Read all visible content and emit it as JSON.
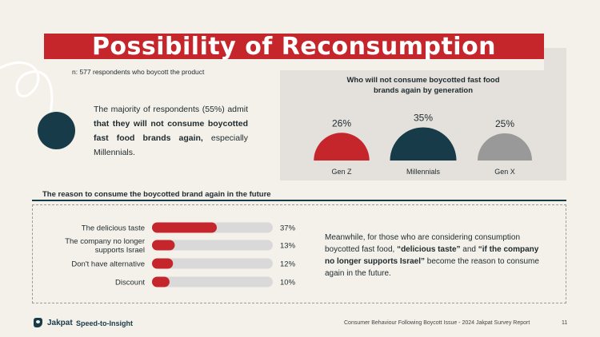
{
  "title": "Possibility of Reconsumption",
  "sample_note": "n: 577 respondents who boycott the product",
  "summary": {
    "part1": "The majority of respondents (55%) admit ",
    "bold": "that they will not consume boycotted fast food brands again,",
    "part2": " especially Millennials."
  },
  "generation_panel": {
    "title_line1": "Who will not consume boycotted fast food",
    "title_line2": "brands again by generation"
  },
  "reason_heading": "The reason to consume the boycotted brand again in the future",
  "meanwhile": {
    "p1": "Meanwhile, for those who are considering consumption boycotted fast food, ",
    "b1": "“delicious taste”",
    "p2": " and ",
    "b2": "“if the company no longer supports Israel”",
    "p3": " become the reason to consume again in the future."
  },
  "footer": {
    "brand": "Jakpat",
    "tagline": "Speed-to-Insight",
    "report": "Consumer Behaviour Following Boycott Issue - 2024 Jakpat Survey Report",
    "page": "11"
  },
  "colors": {
    "red": "#c4262b",
    "navy": "#173b48",
    "gray": "#999999",
    "track": "#d9d9d9"
  },
  "chart_data": [
    {
      "type": "semicircle",
      "title": "Who will not consume boycotted fast food brands again by generation",
      "categories": [
        "Gen Z",
        "Millennials",
        "Gen X"
      ],
      "values": [
        26,
        35,
        25
      ],
      "labels": [
        "26%",
        "35%",
        "25%"
      ],
      "unit": "%"
    },
    {
      "type": "bar",
      "orientation": "horizontal",
      "title": "The reason to consume the boycotted brand again in the future",
      "categories": [
        [
          "The delicious taste"
        ],
        [
          "The company no longer",
          "supports Israel"
        ],
        [
          "Don't have alternative"
        ],
        [
          "Discount"
        ]
      ],
      "values": [
        37,
        13,
        12,
        10
      ],
      "labels": [
        "37%",
        "13%",
        "12%",
        "10%"
      ],
      "xlim": [
        0,
        100
      ]
    }
  ]
}
